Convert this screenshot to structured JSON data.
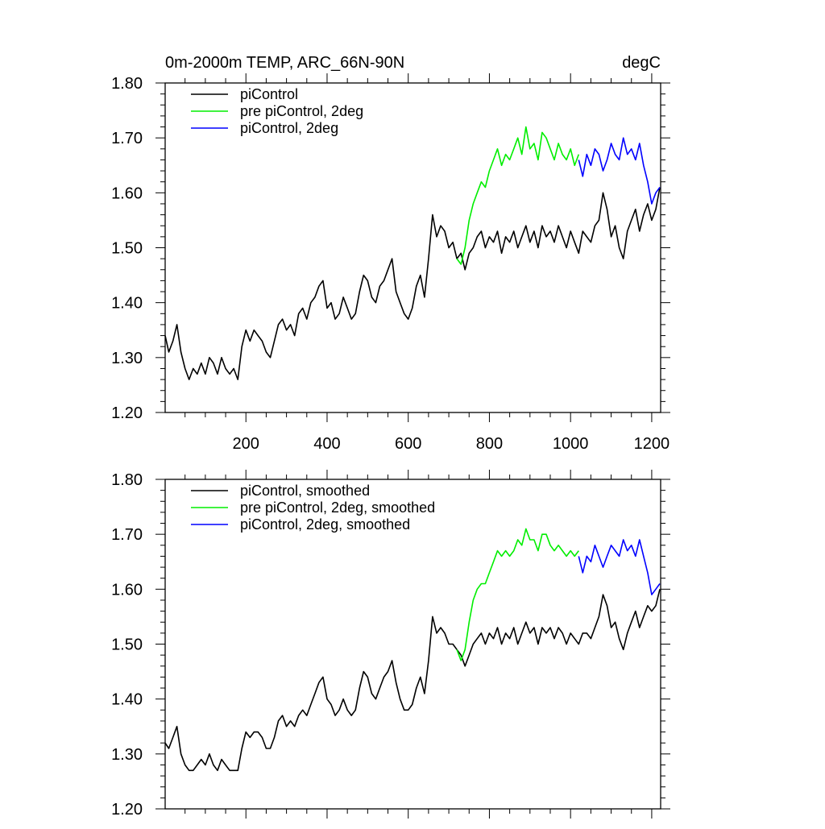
{
  "chart_data": [
    {
      "type": "line",
      "title": "0m-2000m TEMP, ARC_66N-90N",
      "units": "degC",
      "xlabel": "",
      "ylabel": "",
      "xlim": [
        1,
        1222
      ],
      "ylim": [
        1.2,
        1.8
      ],
      "xticks": [
        200,
        400,
        600,
        800,
        1000,
        1200
      ],
      "xtick_labels": [
        "200",
        "400",
        "600",
        "800",
        "1000",
        "1200"
      ],
      "yticks": [
        1.2,
        1.3,
        1.4,
        1.5,
        1.6,
        1.7,
        1.8
      ],
      "ytick_labels": [
        "1.20",
        "1.30",
        "1.40",
        "1.50",
        "1.60",
        "1.70",
        "1.80"
      ],
      "show_xtick_labels": true,
      "legend_position": "top-left",
      "series": [
        {
          "name": "piControl",
          "color": "#000000",
          "x": [
            1,
            10,
            20,
            30,
            40,
            50,
            60,
            70,
            80,
            90,
            100,
            110,
            120,
            130,
            140,
            150,
            160,
            170,
            180,
            190,
            200,
            210,
            220,
            230,
            240,
            250,
            260,
            270,
            280,
            290,
            300,
            310,
            320,
            330,
            340,
            350,
            360,
            370,
            380,
            390,
            400,
            410,
            420,
            430,
            440,
            450,
            460,
            470,
            480,
            490,
            500,
            510,
            520,
            530,
            540,
            550,
            560,
            570,
            580,
            590,
            600,
            610,
            620,
            630,
            640,
            650,
            660,
            670,
            680,
            690,
            700,
            710,
            720,
            730,
            740,
            750,
            760,
            770,
            780,
            790,
            800,
            810,
            820,
            830,
            840,
            850,
            860,
            870,
            880,
            890,
            900,
            910,
            920,
            930,
            940,
            950,
            960,
            970,
            980,
            990,
            1000,
            1010,
            1020,
            1030,
            1040,
            1050,
            1060,
            1070,
            1080,
            1090,
            1100,
            1110,
            1120,
            1130,
            1140,
            1150,
            1160,
            1170,
            1180,
            1190,
            1200,
            1210,
            1220
          ],
          "values": [
            1.34,
            1.31,
            1.33,
            1.36,
            1.31,
            1.28,
            1.26,
            1.28,
            1.27,
            1.29,
            1.27,
            1.3,
            1.29,
            1.27,
            1.3,
            1.28,
            1.27,
            1.28,
            1.26,
            1.32,
            1.35,
            1.33,
            1.35,
            1.34,
            1.33,
            1.31,
            1.3,
            1.33,
            1.36,
            1.37,
            1.35,
            1.36,
            1.34,
            1.38,
            1.39,
            1.37,
            1.4,
            1.41,
            1.43,
            1.44,
            1.39,
            1.4,
            1.37,
            1.38,
            1.41,
            1.39,
            1.37,
            1.38,
            1.42,
            1.45,
            1.44,
            1.41,
            1.4,
            1.43,
            1.44,
            1.46,
            1.48,
            1.42,
            1.4,
            1.38,
            1.37,
            1.39,
            1.43,
            1.45,
            1.41,
            1.48,
            1.56,
            1.52,
            1.54,
            1.53,
            1.5,
            1.51,
            1.48,
            1.49,
            1.46,
            1.49,
            1.5,
            1.52,
            1.53,
            1.5,
            1.52,
            1.51,
            1.53,
            1.49,
            1.52,
            1.51,
            1.53,
            1.5,
            1.52,
            1.54,
            1.51,
            1.53,
            1.5,
            1.54,
            1.52,
            1.53,
            1.51,
            1.54,
            1.52,
            1.5,
            1.53,
            1.51,
            1.49,
            1.53,
            1.52,
            1.51,
            1.54,
            1.55,
            1.6,
            1.57,
            1.52,
            1.54,
            1.5,
            1.48,
            1.53,
            1.55,
            1.57,
            1.53,
            1.56,
            1.58,
            1.55,
            1.57,
            1.61
          ]
        },
        {
          "name": "pre piControl, 2deg",
          "color": "#00ee00",
          "x": [
            720,
            730,
            740,
            750,
            760,
            770,
            780,
            790,
            800,
            810,
            820,
            830,
            840,
            850,
            860,
            870,
            880,
            890,
            900,
            910,
            920,
            930,
            940,
            950,
            960,
            970,
            980,
            990,
            1000,
            1010,
            1020
          ],
          "values": [
            1.48,
            1.47,
            1.5,
            1.55,
            1.58,
            1.6,
            1.62,
            1.61,
            1.64,
            1.66,
            1.68,
            1.65,
            1.67,
            1.66,
            1.68,
            1.7,
            1.67,
            1.72,
            1.68,
            1.69,
            1.66,
            1.71,
            1.7,
            1.68,
            1.66,
            1.69,
            1.67,
            1.66,
            1.68,
            1.65,
            1.67
          ]
        },
        {
          "name": "piControl, 2deg",
          "color": "#0000ff",
          "x": [
            1020,
            1030,
            1040,
            1050,
            1060,
            1070,
            1080,
            1090,
            1100,
            1110,
            1120,
            1130,
            1140,
            1150,
            1160,
            1170,
            1180,
            1190,
            1200,
            1210,
            1220
          ],
          "values": [
            1.66,
            1.63,
            1.67,
            1.65,
            1.68,
            1.67,
            1.64,
            1.66,
            1.69,
            1.67,
            1.66,
            1.7,
            1.67,
            1.68,
            1.66,
            1.69,
            1.65,
            1.62,
            1.58,
            1.6,
            1.61
          ]
        }
      ]
    },
    {
      "type": "line",
      "title": "",
      "units": "",
      "xlabel": "",
      "ylabel": "",
      "xlim": [
        1,
        1222
      ],
      "ylim": [
        1.2,
        1.8
      ],
      "xticks": [
        200,
        400,
        600,
        800,
        1000,
        1200
      ],
      "xtick_labels": [],
      "yticks": [
        1.2,
        1.3,
        1.4,
        1.5,
        1.6,
        1.7,
        1.8
      ],
      "ytick_labels": [
        "1.20",
        "1.30",
        "1.40",
        "1.50",
        "1.60",
        "1.70",
        "1.80"
      ],
      "show_xtick_labels": false,
      "legend_position": "top-left",
      "series": [
        {
          "name": "piControl, smoothed",
          "color": "#000000",
          "x": [
            1,
            10,
            20,
            30,
            40,
            50,
            60,
            70,
            80,
            90,
            100,
            110,
            120,
            130,
            140,
            150,
            160,
            170,
            180,
            190,
            200,
            210,
            220,
            230,
            240,
            250,
            260,
            270,
            280,
            290,
            300,
            310,
            320,
            330,
            340,
            350,
            360,
            370,
            380,
            390,
            400,
            410,
            420,
            430,
            440,
            450,
            460,
            470,
            480,
            490,
            500,
            510,
            520,
            530,
            540,
            550,
            560,
            570,
            580,
            590,
            600,
            610,
            620,
            630,
            640,
            650,
            660,
            670,
            680,
            690,
            700,
            710,
            720,
            730,
            740,
            750,
            760,
            770,
            780,
            790,
            800,
            810,
            820,
            830,
            840,
            850,
            860,
            870,
            880,
            890,
            900,
            910,
            920,
            930,
            940,
            950,
            960,
            970,
            980,
            990,
            1000,
            1010,
            1020,
            1030,
            1040,
            1050,
            1060,
            1070,
            1080,
            1090,
            1100,
            1110,
            1120,
            1130,
            1140,
            1150,
            1160,
            1170,
            1180,
            1190,
            1200,
            1210,
            1220
          ],
          "values": [
            1.32,
            1.31,
            1.33,
            1.35,
            1.3,
            1.28,
            1.27,
            1.27,
            1.28,
            1.29,
            1.28,
            1.3,
            1.28,
            1.27,
            1.29,
            1.28,
            1.27,
            1.27,
            1.27,
            1.31,
            1.34,
            1.33,
            1.34,
            1.34,
            1.33,
            1.31,
            1.31,
            1.33,
            1.36,
            1.37,
            1.35,
            1.36,
            1.35,
            1.37,
            1.38,
            1.37,
            1.39,
            1.41,
            1.43,
            1.44,
            1.4,
            1.39,
            1.37,
            1.38,
            1.4,
            1.38,
            1.37,
            1.38,
            1.42,
            1.45,
            1.44,
            1.41,
            1.4,
            1.42,
            1.44,
            1.45,
            1.47,
            1.43,
            1.4,
            1.38,
            1.38,
            1.39,
            1.42,
            1.44,
            1.41,
            1.47,
            1.55,
            1.52,
            1.53,
            1.52,
            1.5,
            1.5,
            1.49,
            1.48,
            1.46,
            1.48,
            1.5,
            1.51,
            1.52,
            1.5,
            1.52,
            1.51,
            1.53,
            1.5,
            1.52,
            1.51,
            1.53,
            1.5,
            1.52,
            1.54,
            1.52,
            1.53,
            1.5,
            1.53,
            1.52,
            1.53,
            1.51,
            1.53,
            1.52,
            1.5,
            1.52,
            1.51,
            1.5,
            1.52,
            1.52,
            1.51,
            1.53,
            1.55,
            1.59,
            1.57,
            1.53,
            1.54,
            1.51,
            1.49,
            1.52,
            1.54,
            1.56,
            1.53,
            1.55,
            1.57,
            1.56,
            1.57,
            1.6
          ]
        },
        {
          "name": "pre piControl, 2deg, smoothed",
          "color": "#00ee00",
          "x": [
            720,
            730,
            740,
            750,
            760,
            770,
            780,
            790,
            800,
            810,
            820,
            830,
            840,
            850,
            860,
            870,
            880,
            890,
            900,
            910,
            920,
            930,
            940,
            950,
            960,
            970,
            980,
            990,
            1000,
            1010,
            1020
          ],
          "values": [
            1.49,
            1.47,
            1.49,
            1.54,
            1.58,
            1.6,
            1.61,
            1.61,
            1.63,
            1.65,
            1.67,
            1.66,
            1.67,
            1.66,
            1.67,
            1.69,
            1.68,
            1.71,
            1.69,
            1.69,
            1.67,
            1.7,
            1.7,
            1.68,
            1.67,
            1.68,
            1.67,
            1.66,
            1.67,
            1.66,
            1.67
          ]
        },
        {
          "name": "piControl, 2deg, smoothed",
          "color": "#0000ff",
          "x": [
            1020,
            1030,
            1040,
            1050,
            1060,
            1070,
            1080,
            1090,
            1100,
            1110,
            1120,
            1130,
            1140,
            1150,
            1160,
            1170,
            1180,
            1190,
            1200,
            1210,
            1220
          ],
          "values": [
            1.66,
            1.63,
            1.66,
            1.65,
            1.68,
            1.66,
            1.64,
            1.66,
            1.68,
            1.67,
            1.66,
            1.69,
            1.67,
            1.68,
            1.66,
            1.69,
            1.66,
            1.63,
            1.59,
            1.6,
            1.61
          ]
        }
      ]
    }
  ]
}
